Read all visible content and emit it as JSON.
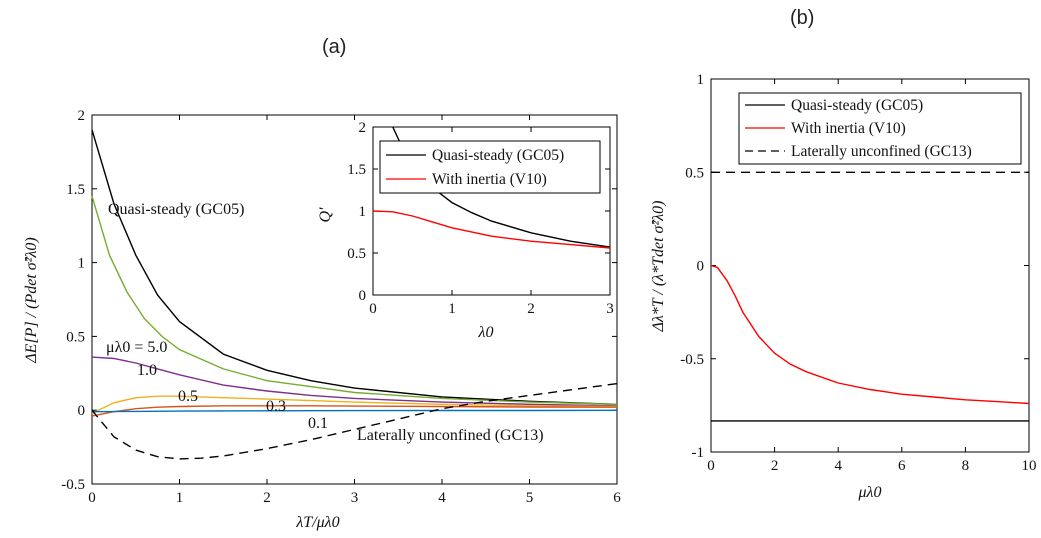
{
  "chart_data": [
    {
      "id": "a",
      "panel_label": "(a)",
      "type": "line",
      "xlabel": "λT/μλ0",
      "ylabel": "ΔE[P] / (Pdet σ̂²λ0)",
      "xlim": [
        0,
        6
      ],
      "ylim": [
        -0.5,
        2
      ],
      "xticks": [
        0,
        1,
        2,
        3,
        4,
        5,
        6
      ],
      "yticks": [
        -0.5,
        0,
        0.5,
        1,
        1.5,
        2
      ],
      "ytick_labels": [
        "-0.5",
        "0",
        "0.5",
        "1",
        "1.5",
        "2"
      ],
      "grid": false,
      "series": [
        {
          "name": "Quasi-steady (GC05)",
          "color": "#000000",
          "dash": "solid",
          "x": [
            0,
            0.25,
            0.5,
            0.75,
            1,
            1.5,
            2,
            2.5,
            3,
            4,
            5,
            6
          ],
          "y": [
            1.9,
            1.4,
            1.05,
            0.78,
            0.6,
            0.38,
            0.27,
            0.2,
            0.15,
            0.09,
            0.06,
            0.04
          ]
        },
        {
          "name": "μλ0 = 5.0",
          "color": "#77ac30",
          "dash": "solid",
          "x": [
            0,
            0.2,
            0.4,
            0.6,
            0.8,
            1,
            1.5,
            2,
            2.5,
            3,
            4,
            5,
            6
          ],
          "y": [
            1.45,
            1.05,
            0.8,
            0.62,
            0.5,
            0.41,
            0.28,
            0.2,
            0.16,
            0.12,
            0.08,
            0.055,
            0.04
          ]
        },
        {
          "name": "μλ0 = 1.0",
          "color": "#7e2f8e",
          "dash": "solid",
          "x": [
            0,
            0.25,
            0.5,
            0.75,
            1,
            1.5,
            2,
            2.5,
            3,
            4,
            5,
            6
          ],
          "y": [
            0.36,
            0.35,
            0.32,
            0.28,
            0.24,
            0.17,
            0.13,
            0.1,
            0.08,
            0.055,
            0.04,
            0.03
          ]
        },
        {
          "name": "μλ0 = 0.5",
          "color": "#edb120",
          "dash": "solid",
          "x": [
            0,
            0.25,
            0.5,
            0.75,
            1,
            1.5,
            2,
            2.5,
            3,
            4,
            5,
            6
          ],
          "y": [
            -0.02,
            0.05,
            0.085,
            0.095,
            0.095,
            0.085,
            0.075,
            0.065,
            0.055,
            0.04,
            0.03,
            0.025
          ]
        },
        {
          "name": "μλ0 = 0.3",
          "color": "#d95319",
          "dash": "solid",
          "x": [
            0,
            0.25,
            0.5,
            0.75,
            1,
            1.5,
            2,
            2.5,
            3,
            4,
            5,
            6
          ],
          "y": [
            -0.04,
            -0.01,
            0.01,
            0.02,
            0.025,
            0.03,
            0.03,
            0.03,
            0.028,
            0.025,
            0.022,
            0.02
          ]
        },
        {
          "name": "μλ0 = 0.1",
          "color": "#0072bd",
          "dash": "solid",
          "x": [
            0,
            0.5,
            1,
            2,
            3,
            4,
            5,
            6
          ],
          "y": [
            -0.01,
            -0.008,
            -0.006,
            -0.004,
            -0.003,
            -0.002,
            -0.002,
            -0.001
          ]
        },
        {
          "name": "Laterally unconfined (GC13)",
          "color": "#000000",
          "dash": "dashed",
          "x": [
            0,
            0.25,
            0.5,
            0.75,
            1,
            1.25,
            1.5,
            2,
            2.5,
            3,
            3.5,
            4,
            4.5,
            5,
            5.5,
            6
          ],
          "y": [
            0,
            -0.18,
            -0.27,
            -0.315,
            -0.33,
            -0.325,
            -0.31,
            -0.26,
            -0.2,
            -0.13,
            -0.06,
            0.01,
            0.06,
            0.1,
            0.14,
            0.18
          ]
        }
      ],
      "annotations": [
        {
          "text": "Quasi-steady (GC05)"
        },
        {
          "text": "μλ0 = 5.0"
        },
        {
          "text": "1.0"
        },
        {
          "text": "0.5"
        },
        {
          "text": "0.3"
        },
        {
          "text": "0.1"
        },
        {
          "text": "Laterally unconfined (GC13)"
        }
      ],
      "inset": {
        "xlabel": "λ0",
        "ylabel": "Q′",
        "xlim": [
          0,
          3
        ],
        "ylim": [
          0,
          2
        ],
        "xticks": [
          0,
          1,
          2,
          3
        ],
        "yticks": [
          0,
          0.5,
          1,
          1.5,
          2
        ],
        "legend_position": "top-right",
        "legend": [
          "Quasi-steady (GC05)",
          "With inertia (V10)"
        ],
        "series": [
          {
            "name": "Quasi-steady (GC05)",
            "color": "#000000",
            "x": [
              0.25,
              0.35,
              0.5,
              0.75,
              1,
              1.25,
              1.5,
              2,
              2.5,
              3
            ],
            "y": [
              2.0,
              1.8,
              1.55,
              1.28,
              1.1,
              0.98,
              0.88,
              0.74,
              0.64,
              0.57
            ]
          },
          {
            "name": "With inertia (V10)",
            "color": "#ff0000",
            "x": [
              0,
              0.25,
              0.5,
              0.75,
              1,
              1.5,
              2,
              2.5,
              3
            ],
            "y": [
              1.0,
              0.99,
              0.94,
              0.87,
              0.8,
              0.7,
              0.64,
              0.6,
              0.56
            ]
          }
        ]
      }
    },
    {
      "id": "b",
      "panel_label": "(b)",
      "type": "line",
      "xlabel": "μλ0",
      "ylabel": "Δλ*T / (λ*Tdet σ̂²λ0)",
      "xlim": [
        0,
        10
      ],
      "ylim": [
        -1,
        1
      ],
      "xticks": [
        0,
        2,
        4,
        6,
        8,
        10
      ],
      "yticks": [
        -1,
        -0.5,
        0,
        0.5,
        1
      ],
      "ytick_labels": [
        "-1",
        "-0.5",
        "0",
        "0.5",
        "1"
      ],
      "grid": false,
      "legend_position": "top-right",
      "legend": [
        "Quasi-steady (GC05)",
        "With inertia (V10)",
        "Laterally unconfined (GC13)"
      ],
      "series": [
        {
          "name": "Quasi-steady (GC05)",
          "color": "#000000",
          "dash": "solid",
          "x": [
            0,
            10
          ],
          "y": [
            -0.833,
            -0.833
          ]
        },
        {
          "name": "With inertia (V10)",
          "color": "#ff0000",
          "dash": "solid",
          "x": [
            0,
            0.2,
            0.5,
            0.75,
            1,
            1.5,
            2,
            2.5,
            3,
            4,
            5,
            6,
            7,
            8,
            9,
            10
          ],
          "y": [
            0,
            -0.01,
            -0.08,
            -0.16,
            -0.25,
            -0.38,
            -0.47,
            -0.53,
            -0.57,
            -0.63,
            -0.665,
            -0.69,
            -0.705,
            -0.72,
            -0.73,
            -0.74
          ]
        },
        {
          "name": "Laterally unconfined (GC13)",
          "color": "#000000",
          "dash": "dashed",
          "x": [
            0,
            10
          ],
          "y": [
            0.5,
            0.5
          ]
        }
      ]
    }
  ]
}
